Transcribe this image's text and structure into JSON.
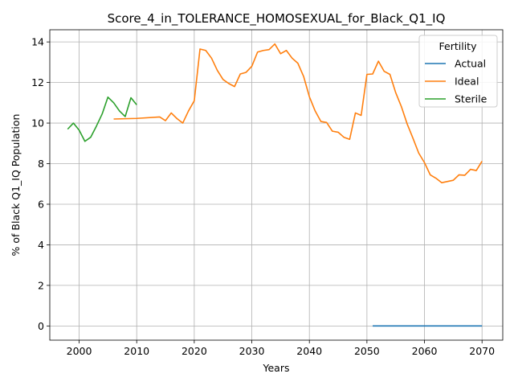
{
  "chart_data": {
    "type": "line",
    "title": "Score_4_in_TOLERANCE_HOMOSEXUAL_for_Black_Q1_IQ",
    "xlabel": "Years",
    "ylabel": "% of Black Q1_IQ Population",
    "xlim": [
      1994.9,
      2073.6
    ],
    "ylim": [
      -0.7,
      14.6
    ],
    "xticks": [
      2000,
      2010,
      2020,
      2030,
      2040,
      2050,
      2060,
      2070
    ],
    "yticks": [
      0,
      2,
      4,
      6,
      8,
      10,
      12,
      14
    ],
    "grid": true,
    "legend": {
      "title": "Fertility",
      "placement": "top-right"
    },
    "series": [
      {
        "name": "Actual",
        "color": "#1f77b4",
        "points": [
          [
            2051,
            0
          ],
          [
            2055,
            0
          ],
          [
            2060,
            0
          ],
          [
            2065,
            0
          ],
          [
            2070,
            0
          ]
        ]
      },
      {
        "name": "Ideal",
        "color": "#ff7f0e",
        "points": [
          [
            2006,
            10.2
          ],
          [
            2010,
            10.23
          ],
          [
            2014,
            10.3
          ],
          [
            2015,
            10.12
          ],
          [
            2016,
            10.5
          ],
          [
            2017,
            10.22
          ],
          [
            2018,
            10.0
          ],
          [
            2019,
            10.6
          ],
          [
            2020,
            11.1
          ],
          [
            2021,
            13.65
          ],
          [
            2022,
            13.58
          ],
          [
            2023,
            13.2
          ],
          [
            2024,
            12.6
          ],
          [
            2025,
            12.15
          ],
          [
            2026,
            11.95
          ],
          [
            2027,
            11.8
          ],
          [
            2028,
            12.42
          ],
          [
            2029,
            12.5
          ],
          [
            2030,
            12.8
          ],
          [
            2031,
            13.5
          ],
          [
            2032,
            13.58
          ],
          [
            2033,
            13.62
          ],
          [
            2034,
            13.9
          ],
          [
            2035,
            13.42
          ],
          [
            2036,
            13.58
          ],
          [
            2037,
            13.2
          ],
          [
            2038,
            12.95
          ],
          [
            2039,
            12.3
          ],
          [
            2040,
            11.3
          ],
          [
            2041,
            10.6
          ],
          [
            2042,
            10.08
          ],
          [
            2043,
            10.03
          ],
          [
            2044,
            9.6
          ],
          [
            2045,
            9.55
          ],
          [
            2046,
            9.3
          ],
          [
            2047,
            9.2
          ],
          [
            2048,
            10.5
          ],
          [
            2049,
            10.38
          ],
          [
            2050,
            12.4
          ],
          [
            2051,
            12.42
          ],
          [
            2052,
            13.05
          ],
          [
            2053,
            12.55
          ],
          [
            2054,
            12.4
          ],
          [
            2055,
            11.5
          ],
          [
            2056,
            10.8
          ],
          [
            2057,
            9.95
          ],
          [
            2058,
            9.25
          ],
          [
            2059,
            8.52
          ],
          [
            2060,
            8.05
          ],
          [
            2061,
            7.45
          ],
          [
            2062,
            7.28
          ],
          [
            2063,
            7.06
          ],
          [
            2064,
            7.12
          ],
          [
            2065,
            7.18
          ],
          [
            2066,
            7.45
          ],
          [
            2067,
            7.43
          ],
          [
            2068,
            7.72
          ],
          [
            2069,
            7.66
          ],
          [
            2070,
            8.12
          ]
        ]
      },
      {
        "name": "Sterile",
        "color": "#2ca02c",
        "points": [
          [
            1998,
            9.7
          ],
          [
            1999,
            10.0
          ],
          [
            2000,
            9.65
          ],
          [
            2001,
            9.1
          ],
          [
            2002,
            9.3
          ],
          [
            2003,
            9.85
          ],
          [
            2004,
            10.45
          ],
          [
            2005,
            11.28
          ],
          [
            2006,
            11.0
          ],
          [
            2007,
            10.6
          ],
          [
            2008,
            10.32
          ],
          [
            2009,
            11.25
          ],
          [
            2010,
            10.9
          ]
        ]
      }
    ]
  }
}
